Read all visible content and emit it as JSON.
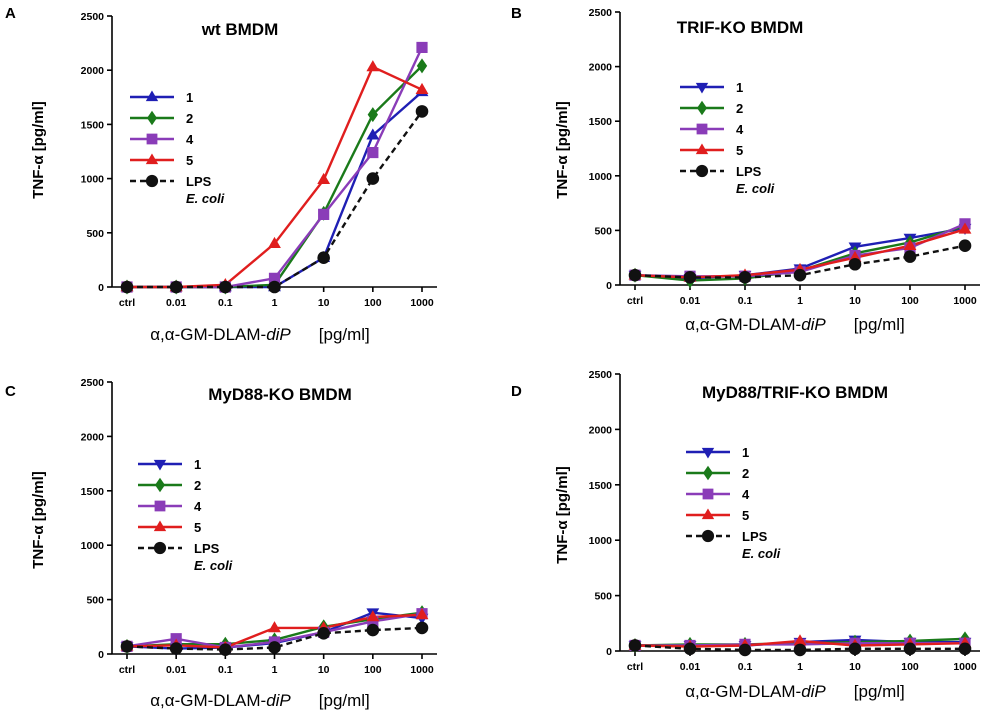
{
  "chart_data": [
    {
      "panel": "A",
      "type": "line",
      "title": "wt BMDM",
      "ylabel": "TNF-α [pg/ml]",
      "xlabel": "α,α-GM-DLAM-",
      "xlabel_italic": "diP",
      "xlabel_units": "[pg/ml]",
      "categories": [
        "ctrl",
        "0.01",
        "0.1",
        "1",
        "10",
        "100",
        "1000"
      ],
      "ylim": [
        0,
        2500
      ],
      "yticks": [
        "0",
        "500",
        "1000",
        "1500",
        "2000",
        "2500"
      ],
      "legend_position": "upper-left",
      "series": [
        {
          "name": "1",
          "color": "#1f1fb4",
          "marker": "triangle-up",
          "values": [
            0,
            0,
            0,
            0,
            270,
            1400,
            1800
          ]
        },
        {
          "name": "2",
          "color": "#1a7a1a",
          "marker": "diamond",
          "values": [
            0,
            0,
            0,
            20,
            680,
            1590,
            2040
          ]
        },
        {
          "name": "4",
          "color": "#8a3cb8",
          "marker": "square",
          "values": [
            0,
            0,
            0,
            80,
            670,
            1240,
            2210
          ]
        },
        {
          "name": "5",
          "color": "#e01e1e",
          "marker": "triangle-up",
          "values": [
            0,
            0,
            20,
            400,
            990,
            2030,
            1820
          ]
        },
        {
          "name": "LPS",
          "name_line2": "E. coli",
          "color": "#111111",
          "marker": "circle",
          "dashed": true,
          "values": [
            0,
            0,
            0,
            0,
            270,
            1000,
            1620
          ]
        }
      ]
    },
    {
      "panel": "B",
      "type": "line",
      "title": "TRIF-KO BMDM",
      "ylabel": "TNF-α [pg/ml]",
      "xlabel": "α,α-GM-DLAM-",
      "xlabel_italic": "diP",
      "xlabel_units": "[pg/ml]",
      "categories": [
        "ctrl",
        "0.01",
        "0.1",
        "1",
        "10",
        "100",
        "1000"
      ],
      "ylim": [
        0,
        2500
      ],
      "yticks": [
        "0",
        "500",
        "1000",
        "1500",
        "2000",
        "2500"
      ],
      "legend_position": "upper-left",
      "series": [
        {
          "name": "1",
          "color": "#1f1fb4",
          "marker": "triangle-down",
          "values": [
            90,
            60,
            90,
            150,
            350,
            430,
            520
          ]
        },
        {
          "name": "2",
          "color": "#1a7a1a",
          "marker": "diamond",
          "values": [
            90,
            40,
            60,
            130,
            290,
            390,
            540
          ]
        },
        {
          "name": "4",
          "color": "#8a3cb8",
          "marker": "square",
          "values": [
            90,
            80,
            80,
            120,
            270,
            340,
            560
          ]
        },
        {
          "name": "5",
          "color": "#e01e1e",
          "marker": "triangle-up",
          "values": [
            90,
            70,
            90,
            140,
            250,
            360,
            510
          ]
        },
        {
          "name": "LPS",
          "name_line2": "E. coli",
          "color": "#111111",
          "marker": "circle",
          "dashed": true,
          "values": [
            90,
            70,
            70,
            90,
            190,
            260,
            360
          ]
        }
      ]
    },
    {
      "panel": "C",
      "type": "line",
      "title": "MyD88-KO BMDM",
      "ylabel": "TNF-α [pg/ml]",
      "xlabel": "α,α-GM-DLAM-",
      "xlabel_italic": "diP",
      "xlabel_units": "[pg/ml]",
      "categories": [
        "ctrl",
        "0.01",
        "0.1",
        "1",
        "10",
        "100",
        "1000"
      ],
      "ylim": [
        0,
        2500
      ],
      "yticks": [
        "0",
        "500",
        "1000",
        "1500",
        "2000",
        "2500"
      ],
      "legend_position": "upper-left",
      "series": [
        {
          "name": "1",
          "color": "#1f1fb4",
          "marker": "triangle-down",
          "values": [
            70,
            50,
            60,
            100,
            200,
            380,
            330
          ]
        },
        {
          "name": "2",
          "color": "#1a7a1a",
          "marker": "diamond",
          "values": [
            70,
            90,
            90,
            130,
            250,
            320,
            380
          ]
        },
        {
          "name": "4",
          "color": "#8a3cb8",
          "marker": "square",
          "values": [
            70,
            140,
            60,
            110,
            200,
            300,
            370
          ]
        },
        {
          "name": "5",
          "color": "#e01e1e",
          "marker": "triangle-up",
          "values": [
            70,
            80,
            60,
            240,
            240,
            340,
            360
          ]
        },
        {
          "name": "LPS",
          "name_line2": "E. coli",
          "color": "#111111",
          "marker": "circle",
          "dashed": true,
          "values": [
            70,
            50,
            40,
            60,
            190,
            220,
            240
          ]
        }
      ]
    },
    {
      "panel": "D",
      "type": "line",
      "title": "MyD88/TRIF-KO BMDM",
      "ylabel": "TNF-α [pg/ml]",
      "xlabel": "α,α-GM-DLAM-",
      "xlabel_italic": "diP",
      "xlabel_units": "[pg/ml]",
      "categories": [
        "ctrl",
        "0.01",
        "0.1",
        "1",
        "10",
        "100",
        "1000"
      ],
      "ylim": [
        0,
        2500
      ],
      "yticks": [
        "0",
        "500",
        "1000",
        "1500",
        "2000",
        "2500"
      ],
      "legend_position": "upper-left",
      "series": [
        {
          "name": "1",
          "color": "#1f1fb4",
          "marker": "triangle-down",
          "values": [
            50,
            50,
            50,
            80,
            100,
            80,
            80
          ]
        },
        {
          "name": "2",
          "color": "#1a7a1a",
          "marker": "diamond",
          "values": [
            50,
            60,
            60,
            70,
            80,
            90,
            110
          ]
        },
        {
          "name": "4",
          "color": "#8a3cb8",
          "marker": "square",
          "values": [
            50,
            50,
            60,
            60,
            70,
            70,
            70
          ]
        },
        {
          "name": "5",
          "color": "#e01e1e",
          "marker": "triangle-up",
          "values": [
            50,
            40,
            50,
            90,
            50,
            60,
            70
          ]
        },
        {
          "name": "LPS",
          "name_line2": "E. coli",
          "color": "#111111",
          "marker": "circle",
          "dashed": true,
          "values": [
            50,
            20,
            10,
            10,
            20,
            20,
            20
          ]
        }
      ]
    }
  ]
}
